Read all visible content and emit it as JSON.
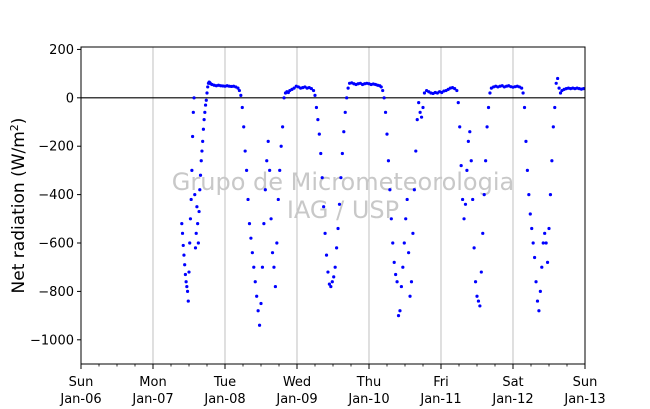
{
  "chart_data": {
    "type": "scatter",
    "title": "",
    "xlabel": "",
    "ylabel": "Net radiation (W/m",
    "ylabel_superscript": "2",
    "ylabel_suffix": ")",
    "watermark": [
      "Grupo de Micrometeorologia",
      "IAG / USP"
    ],
    "xlim": [
      0,
      7
    ],
    "ylim": [
      -1100,
      210
    ],
    "yticks": [
      200,
      0,
      -200,
      -400,
      -600,
      -800,
      -1000
    ],
    "ytick_labels": [
      "200",
      "0",
      "−200",
      "−400",
      "−600",
      "−800",
      "−1000"
    ],
    "xticks": [
      {
        "x": 0,
        "day": "Sun",
        "date": "Jan-06"
      },
      {
        "x": 1,
        "day": "Mon",
        "date": "Jan-07"
      },
      {
        "x": 2,
        "day": "Tue",
        "date": "Jan-08"
      },
      {
        "x": 3,
        "day": "Wed",
        "date": "Jan-09"
      },
      {
        "x": 4,
        "day": "Thu",
        "date": "Jan-10"
      },
      {
        "x": 5,
        "day": "Fri",
        "date": "Jan-11"
      },
      {
        "x": 6,
        "day": "Sat",
        "date": "Jan-12"
      },
      {
        "x": 7,
        "day": "Sun",
        "date": "Jan-13"
      }
    ],
    "grid": "vertical",
    "reference_line_y": 0,
    "series": [
      {
        "color": "#0000ff",
        "points": [
          [
            1.4,
            -520
          ],
          [
            1.41,
            -560
          ],
          [
            1.42,
            -610
          ],
          [
            1.43,
            -650
          ],
          [
            1.44,
            -690
          ],
          [
            1.45,
            -730
          ],
          [
            1.46,
            -760
          ],
          [
            1.47,
            -780
          ],
          [
            1.48,
            -800
          ],
          [
            1.49,
            -840
          ],
          [
            1.5,
            -720
          ],
          [
            1.51,
            -600
          ],
          [
            1.52,
            -500
          ],
          [
            1.53,
            -420
          ],
          [
            1.54,
            -300
          ],
          [
            1.55,
            -160
          ],
          [
            1.56,
            -60
          ],
          [
            1.57,
            0
          ],
          [
            1.58,
            -400
          ],
          [
            1.59,
            -620
          ],
          [
            1.6,
            -560
          ],
          [
            1.61,
            -450
          ],
          [
            1.62,
            -520
          ],
          [
            1.63,
            -600
          ],
          [
            1.64,
            -470
          ],
          [
            1.65,
            -380
          ],
          [
            1.66,
            -320
          ],
          [
            1.67,
            -260
          ],
          [
            1.68,
            -220
          ],
          [
            1.69,
            -180
          ],
          [
            1.7,
            -130
          ],
          [
            1.71,
            -90
          ],
          [
            1.72,
            -60
          ],
          [
            1.73,
            -30
          ],
          [
            1.74,
            -10
          ],
          [
            1.75,
            20
          ],
          [
            1.76,
            45
          ],
          [
            1.77,
            60
          ],
          [
            1.78,
            65
          ],
          [
            1.79,
            62
          ],
          [
            1.8,
            58
          ],
          [
            1.82,
            55
          ],
          [
            1.85,
            52
          ],
          [
            1.88,
            50
          ],
          [
            1.91,
            52
          ],
          [
            1.94,
            50
          ],
          [
            1.97,
            49
          ],
          [
            2.0,
            48
          ],
          [
            2.03,
            50
          ],
          [
            2.06,
            48
          ],
          [
            2.09,
            47
          ],
          [
            2.12,
            48
          ],
          [
            2.15,
            45
          ],
          [
            2.18,
            40
          ],
          [
            2.2,
            30
          ],
          [
            2.22,
            10
          ],
          [
            2.24,
            -40
          ],
          [
            2.26,
            -120
          ],
          [
            2.28,
            -220
          ],
          [
            2.3,
            -300
          ],
          [
            2.32,
            -420
          ],
          [
            2.34,
            -520
          ],
          [
            2.36,
            -580
          ],
          [
            2.38,
            -640
          ],
          [
            2.4,
            -700
          ],
          [
            2.42,
            -760
          ],
          [
            2.44,
            -820
          ],
          [
            2.46,
            -880
          ],
          [
            2.48,
            -940
          ],
          [
            2.5,
            -850
          ],
          [
            2.52,
            -700
          ],
          [
            2.54,
            -520
          ],
          [
            2.56,
            -380
          ],
          [
            2.58,
            -260
          ],
          [
            2.6,
            -180
          ],
          [
            2.62,
            -300
          ],
          [
            2.64,
            -500
          ],
          [
            2.66,
            -640
          ],
          [
            2.68,
            -700
          ],
          [
            2.7,
            -780
          ],
          [
            2.72,
            -600
          ],
          [
            2.74,
            -420
          ],
          [
            2.76,
            -300
          ],
          [
            2.78,
            -200
          ],
          [
            2.8,
            -120
          ],
          [
            2.82,
            0
          ],
          [
            2.84,
            20
          ],
          [
            2.86,
            25
          ],
          [
            2.88,
            22
          ],
          [
            2.9,
            30
          ],
          [
            2.93,
            35
          ],
          [
            2.96,
            40
          ],
          [
            2.99,
            48
          ],
          [
            3.02,
            45
          ],
          [
            3.05,
            40
          ],
          [
            3.08,
            42
          ],
          [
            3.11,
            45
          ],
          [
            3.14,
            40
          ],
          [
            3.17,
            42
          ],
          [
            3.2,
            38
          ],
          [
            3.23,
            30
          ],
          [
            3.25,
            10
          ],
          [
            3.27,
            -40
          ],
          [
            3.29,
            -90
          ],
          [
            3.31,
            -150
          ],
          [
            3.33,
            -230
          ],
          [
            3.35,
            -330
          ],
          [
            3.37,
            -450
          ],
          [
            3.39,
            -560
          ],
          [
            3.41,
            -650
          ],
          [
            3.43,
            -720
          ],
          [
            3.45,
            -770
          ],
          [
            3.47,
            -780
          ],
          [
            3.49,
            -760
          ],
          [
            3.51,
            -740
          ],
          [
            3.53,
            -700
          ],
          [
            3.55,
            -620
          ],
          [
            3.57,
            -540
          ],
          [
            3.59,
            -440
          ],
          [
            3.61,
            -330
          ],
          [
            3.63,
            -230
          ],
          [
            3.65,
            -140
          ],
          [
            3.67,
            -60
          ],
          [
            3.69,
            0
          ],
          [
            3.71,
            40
          ],
          [
            3.73,
            60
          ],
          [
            3.76,
            62
          ],
          [
            3.79,
            58
          ],
          [
            3.82,
            55
          ],
          [
            3.85,
            58
          ],
          [
            3.88,
            60
          ],
          [
            3.91,
            55
          ],
          [
            3.94,
            58
          ],
          [
            3.97,
            60
          ],
          [
            4.0,
            58
          ],
          [
            4.03,
            55
          ],
          [
            4.06,
            57
          ],
          [
            4.09,
            55
          ],
          [
            4.12,
            52
          ],
          [
            4.15,
            50
          ],
          [
            4.17,
            45
          ],
          [
            4.19,
            30
          ],
          [
            4.21,
            0
          ],
          [
            4.23,
            -60
          ],
          [
            4.25,
            -150
          ],
          [
            4.27,
            -260
          ],
          [
            4.29,
            -380
          ],
          [
            4.31,
            -500
          ],
          [
            4.33,
            -600
          ],
          [
            4.35,
            -680
          ],
          [
            4.37,
            -730
          ],
          [
            4.39,
            -760
          ],
          [
            4.41,
            -900
          ],
          [
            4.43,
            -880
          ],
          [
            4.45,
            -780
          ],
          [
            4.47,
            -700
          ],
          [
            4.49,
            -600
          ],
          [
            4.51,
            -500
          ],
          [
            4.53,
            -420
          ],
          [
            4.55,
            -640
          ],
          [
            4.57,
            -820
          ],
          [
            4.59,
            -760
          ],
          [
            4.61,
            -560
          ],
          [
            4.63,
            -380
          ],
          [
            4.65,
            -220
          ],
          [
            4.67,
            -90
          ],
          [
            4.69,
            -20
          ],
          [
            4.71,
            -60
          ],
          [
            4.73,
            -80
          ],
          [
            4.75,
            -40
          ],
          [
            4.77,
            20
          ],
          [
            4.8,
            30
          ],
          [
            4.83,
            25
          ],
          [
            4.86,
            20
          ],
          [
            4.89,
            18
          ],
          [
            4.92,
            22
          ],
          [
            4.95,
            20
          ],
          [
            4.98,
            25
          ],
          [
            5.01,
            22
          ],
          [
            5.04,
            28
          ],
          [
            5.07,
            30
          ],
          [
            5.1,
            35
          ],
          [
            5.13,
            40
          ],
          [
            5.16,
            42
          ],
          [
            5.19,
            38
          ],
          [
            5.22,
            30
          ],
          [
            5.24,
            -20
          ],
          [
            5.26,
            -120
          ],
          [
            5.28,
            -280
          ],
          [
            5.3,
            -420
          ],
          [
            5.32,
            -500
          ],
          [
            5.34,
            -440
          ],
          [
            5.36,
            -300
          ],
          [
            5.38,
            -180
          ],
          [
            5.4,
            -140
          ],
          [
            5.42,
            -260
          ],
          [
            5.44,
            -420
          ],
          [
            5.46,
            -620
          ],
          [
            5.48,
            -760
          ],
          [
            5.5,
            -820
          ],
          [
            5.52,
            -840
          ],
          [
            5.54,
            -860
          ],
          [
            5.56,
            -720
          ],
          [
            5.58,
            -560
          ],
          [
            5.6,
            -400
          ],
          [
            5.62,
            -260
          ],
          [
            5.64,
            -120
          ],
          [
            5.66,
            -40
          ],
          [
            5.68,
            20
          ],
          [
            5.7,
            40
          ],
          [
            5.73,
            45
          ],
          [
            5.76,
            48
          ],
          [
            5.79,
            45
          ],
          [
            5.82,
            48
          ],
          [
            5.85,
            50
          ],
          [
            5.88,
            45
          ],
          [
            5.91,
            48
          ],
          [
            5.94,
            50
          ],
          [
            5.97,
            46
          ],
          [
            6.0,
            44
          ],
          [
            6.03,
            46
          ],
          [
            6.06,
            48
          ],
          [
            6.09,
            45
          ],
          [
            6.12,
            40
          ],
          [
            6.14,
            20
          ],
          [
            6.16,
            -40
          ],
          [
            6.18,
            -180
          ],
          [
            6.2,
            -300
          ],
          [
            6.22,
            -400
          ],
          [
            6.24,
            -480
          ],
          [
            6.26,
            -540
          ],
          [
            6.28,
            -600
          ],
          [
            6.3,
            -660
          ],
          [
            6.32,
            -760
          ],
          [
            6.34,
            -840
          ],
          [
            6.36,
            -880
          ],
          [
            6.38,
            -800
          ],
          [
            6.4,
            -700
          ],
          [
            6.42,
            -600
          ],
          [
            6.44,
            -560
          ],
          [
            6.46,
            -600
          ],
          [
            6.48,
            -680
          ],
          [
            6.5,
            -540
          ],
          [
            6.52,
            -400
          ],
          [
            6.54,
            -260
          ],
          [
            6.56,
            -120
          ],
          [
            6.58,
            -40
          ],
          [
            6.6,
            60
          ],
          [
            6.62,
            80
          ],
          [
            6.64,
            40
          ],
          [
            6.66,
            20
          ],
          [
            6.68,
            30
          ],
          [
            6.71,
            35
          ],
          [
            6.74,
            38
          ],
          [
            6.77,
            40
          ],
          [
            6.8,
            38
          ],
          [
            6.83,
            40
          ],
          [
            6.86,
            38
          ],
          [
            6.89,
            40
          ],
          [
            6.92,
            38
          ],
          [
            6.95,
            36
          ],
          [
            6.98,
            38
          ]
        ]
      }
    ]
  }
}
